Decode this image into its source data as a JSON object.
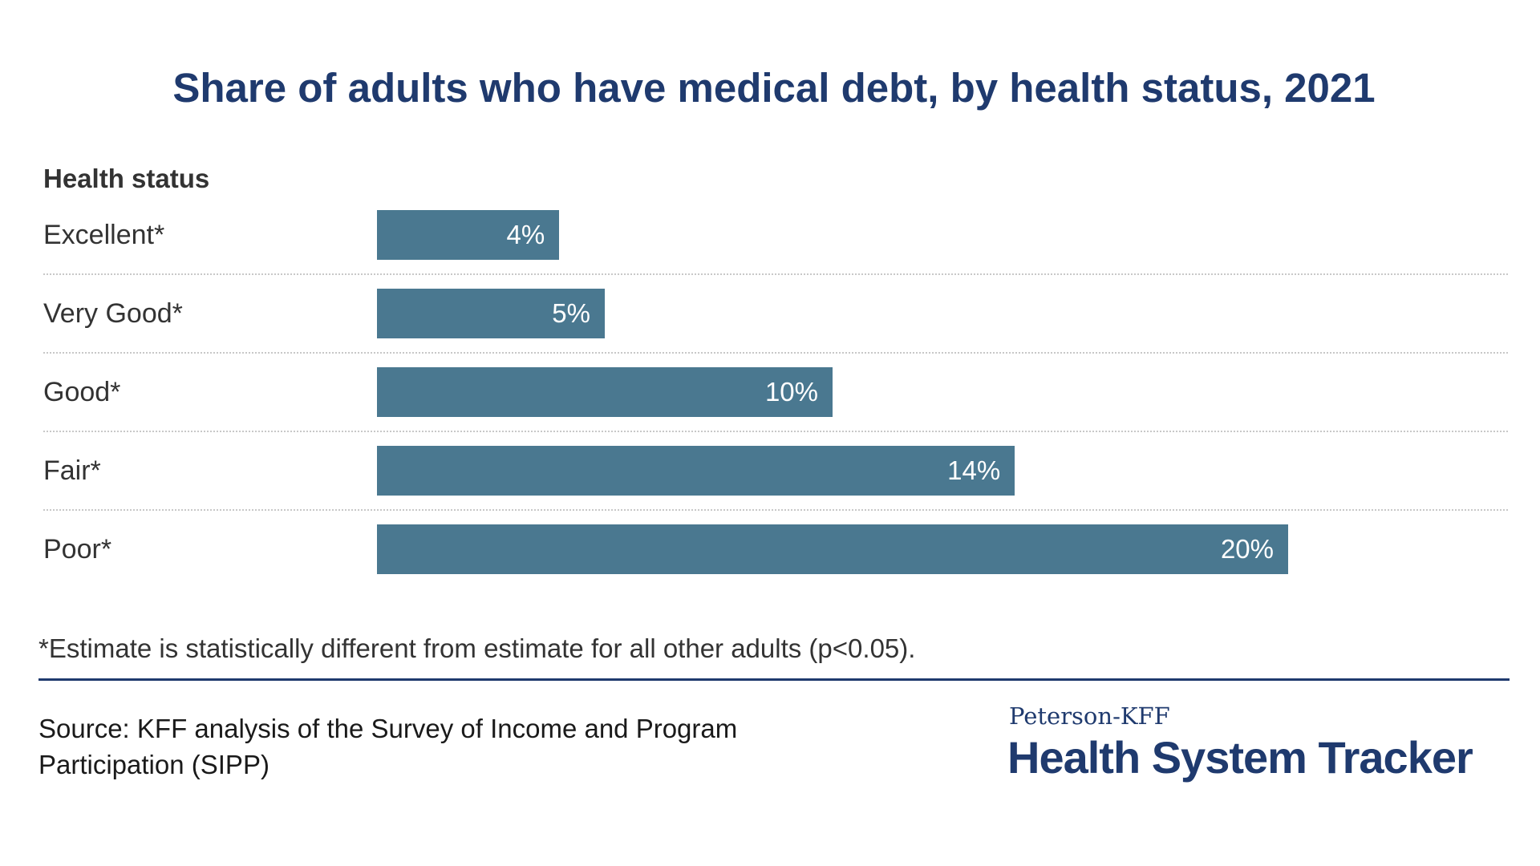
{
  "chart_data": {
    "type": "bar",
    "orientation": "horizontal",
    "title": "Share of adults who have medical debt, by health status, 2021",
    "category_header": "Health status",
    "categories": [
      "Excellent*",
      "Very Good*",
      "Good*",
      "Fair*",
      "Poor*"
    ],
    "values": [
      4,
      5,
      10,
      14,
      20
    ],
    "value_labels": [
      "4%",
      "5%",
      "10%",
      "14%",
      "20%"
    ],
    "unit": "%",
    "xlim": [
      0,
      20
    ],
    "bar_color": "#4a7890",
    "grid": false
  },
  "footnote": "*Estimate is statistically different from estimate for all other adults (p<0.05).",
  "source": "Source: KFF analysis of the Survey of Income and Program Participation (SIPP)",
  "logo": {
    "top": "Peterson-KFF",
    "main": "Health System Tracker"
  },
  "colors": {
    "title": "#1f3a6e",
    "bar": "#4a7890",
    "rule": "#1f3a6e"
  }
}
